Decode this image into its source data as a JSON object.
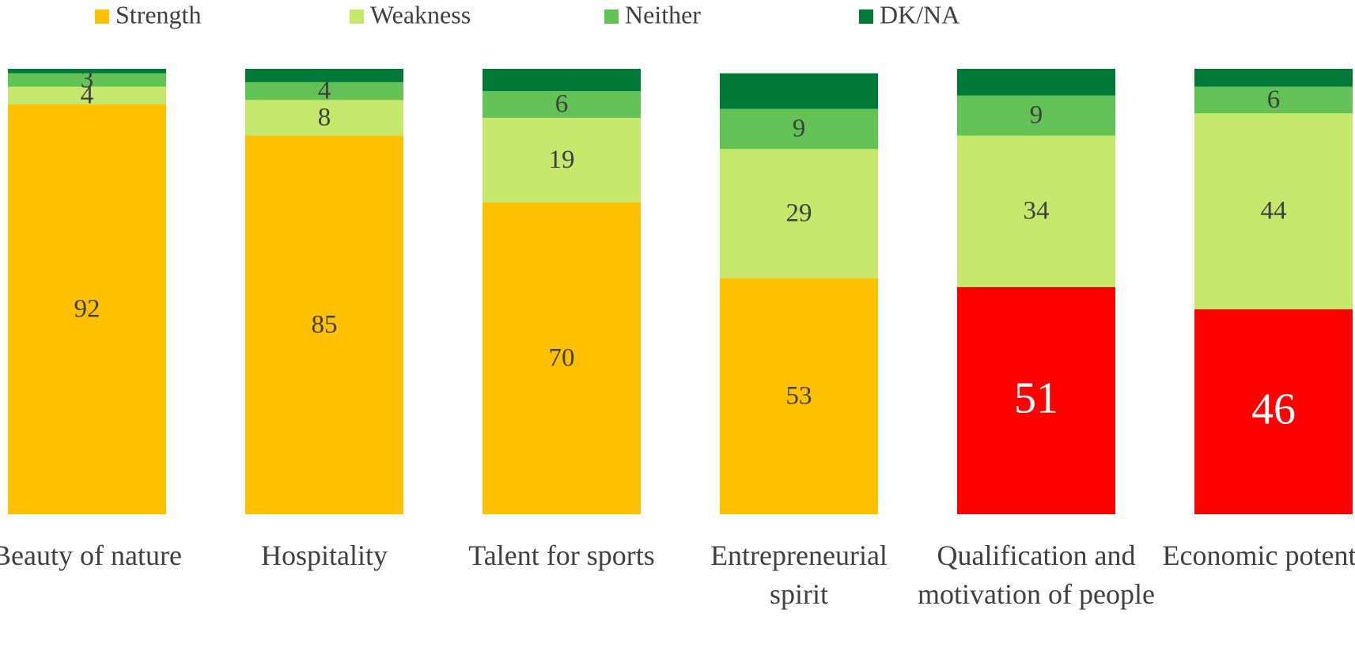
{
  "chart_data": {
    "type": "stacked_bar",
    "categories": [
      "Beauty of nature",
      "Hospitality",
      "Talent for sports",
      "Entrepreneurial spirit",
      "Qualification and motivation of people",
      "Economic potential"
    ],
    "series": [
      {
        "name": "Strength",
        "color": "#ffc000",
        "point_colors": [
          "#ffc000",
          "#ffc000",
          "#ffc000",
          "#ffc000",
          "#ff0000",
          "#ff0000"
        ],
        "values": [
          92,
          85,
          70,
          53,
          51,
          46
        ],
        "labels": true
      },
      {
        "name": "Weakness",
        "color": "#c5e86c",
        "values": [
          4,
          8,
          19,
          29,
          34,
          44
        ],
        "labels": true
      },
      {
        "name": "Neither",
        "color": "#62c256",
        "values": [
          3,
          4,
          6,
          9,
          9,
          6
        ],
        "labels": true
      },
      {
        "name": "DK/NA",
        "color": "#007a37",
        "values": [
          1,
          3,
          5,
          8,
          6,
          4
        ],
        "labels": false
      }
    ],
    "ylim": [
      0,
      100
    ],
    "legend": "top"
  }
}
